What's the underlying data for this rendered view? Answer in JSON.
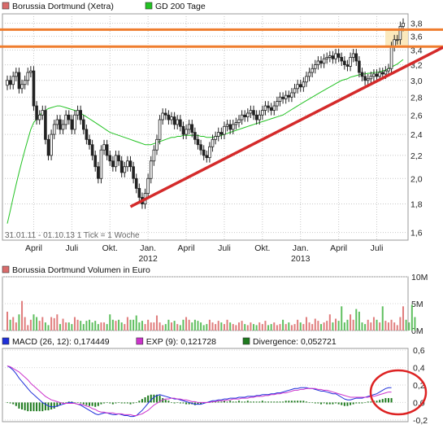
{
  "chart_data": [
    {
      "type": "candlestick",
      "legend": [
        {
          "label": "Borussia Dortmund (Xetra)",
          "color": "#d96b6b"
        },
        {
          "label": "GD 200 Tage",
          "color": "#22c222"
        }
      ],
      "ylim": [
        1.55,
        3.95
      ],
      "log_scale": true,
      "y_ticks": [
        "1,6",
        "1,8",
        "2,0",
        "2,2",
        "2,4",
        "2,6",
        "2,8",
        "3,0",
        "3,2",
        "3,4",
        "3,6",
        "3,8"
      ],
      "y_tick_values": [
        1.6,
        1.8,
        2.0,
        2.2,
        2.4,
        2.6,
        2.8,
        3.0,
        3.2,
        3.4,
        3.6,
        3.8
      ],
      "x_ticks": [
        "April",
        "Juli",
        "Okt.",
        "Jan.",
        "April",
        "Juli",
        "Okt.",
        "Jan.",
        "April",
        "Juli"
      ],
      "x_tick_years": [
        "",
        "",
        "",
        "2012",
        "",
        "",
        "",
        "2013",
        "",
        ""
      ],
      "x_tick_weeks": [
        9,
        22,
        35,
        48,
        61,
        74,
        87,
        100,
        113,
        126
      ],
      "info_text": "31.01.11 - 01.10.13  1 Tick = 1 Woche",
      "close": [
        3.0,
        2.95,
        3.05,
        3.1,
        2.9,
        2.95,
        3.0,
        3.1,
        3.12,
        2.7,
        2.55,
        2.6,
        2.65,
        2.35,
        2.2,
        2.4,
        2.5,
        2.55,
        2.45,
        2.5,
        2.6,
        2.55,
        2.45,
        2.6,
        2.65,
        2.55,
        2.45,
        2.35,
        2.3,
        2.2,
        2.1,
        2.0,
        2.25,
        2.3,
        2.2,
        2.15,
        2.1,
        2.2,
        2.15,
        2.05,
        2.1,
        2.15,
        2.1,
        2.0,
        1.92,
        1.85,
        1.8,
        1.88,
        2.0,
        2.15,
        2.25,
        2.35,
        2.55,
        2.62,
        2.6,
        2.55,
        2.58,
        2.5,
        2.55,
        2.48,
        2.4,
        2.45,
        2.5,
        2.42,
        2.35,
        2.3,
        2.25,
        2.2,
        2.18,
        2.28,
        2.35,
        2.38,
        2.42,
        2.4,
        2.48,
        2.5,
        2.45,
        2.5,
        2.52,
        2.55,
        2.6,
        2.58,
        2.62,
        2.65,
        2.6,
        2.55,
        2.6,
        2.65,
        2.7,
        2.68,
        2.65,
        2.7,
        2.75,
        2.8,
        2.78,
        2.82,
        2.8,
        2.85,
        2.9,
        2.95,
        2.92,
        2.98,
        3.05,
        3.1,
        3.15,
        3.2,
        3.25,
        3.22,
        3.28,
        3.3,
        3.32,
        3.28,
        3.35,
        3.3,
        3.25,
        3.2,
        3.18,
        3.3,
        3.35,
        3.25,
        3.1,
        3.05,
        3.0,
        3.02,
        3.05,
        3.08,
        3.05,
        3.1,
        3.08,
        3.12,
        3.15,
        3.45,
        3.55,
        3.55,
        3.75,
        3.8
      ],
      "gd200": [
        1.66,
        1.75,
        1.85,
        1.95,
        2.05,
        2.15,
        2.25,
        2.35,
        2.45,
        2.52,
        2.56,
        2.6,
        2.63,
        2.65,
        2.67,
        2.68,
        2.69,
        2.7,
        2.7,
        2.69,
        2.68,
        2.67,
        2.66,
        2.65,
        2.64,
        2.62,
        2.6,
        2.58,
        2.56,
        2.54,
        2.52,
        2.5,
        2.48,
        2.46,
        2.44,
        2.42,
        2.41,
        2.4,
        2.39,
        2.38,
        2.37,
        2.36,
        2.35,
        2.34,
        2.33,
        2.32,
        2.31,
        2.3,
        2.3,
        2.3,
        2.31,
        2.32,
        2.33,
        2.34,
        2.35,
        2.36,
        2.37,
        2.37,
        2.38,
        2.38,
        2.39,
        2.39,
        2.39,
        2.39,
        2.39,
        2.39,
        2.38,
        2.38,
        2.37,
        2.37,
        2.37,
        2.38,
        2.38,
        2.39,
        2.4,
        2.41,
        2.42,
        2.43,
        2.44,
        2.45,
        2.46,
        2.47,
        2.48,
        2.49,
        2.5,
        2.51,
        2.52,
        2.53,
        2.54,
        2.55,
        2.56,
        2.57,
        2.58,
        2.59,
        2.6,
        2.62,
        2.64,
        2.66,
        2.68,
        2.7,
        2.72,
        2.74,
        2.76,
        2.78,
        2.8,
        2.82,
        2.84,
        2.86,
        2.88,
        2.9,
        2.92,
        2.94,
        2.96,
        2.98,
        3.0,
        3.01,
        3.02,
        3.04,
        3.05,
        3.06,
        3.07,
        3.08,
        3.08,
        3.09,
        3.09,
        3.1,
        3.1,
        3.11,
        3.12,
        3.13,
        3.15,
        3.17,
        3.19,
        3.21,
        3.24,
        3.27
      ],
      "annotations": {
        "horizontal_lines": [
          3.7,
          3.45
        ],
        "highlight_band": [
          3.45,
          3.7
        ],
        "trendline": {
          "from": {
            "week": 42,
            "value": 1.78
          },
          "to": {
            "week": 140,
            "value": 3.45
          }
        }
      }
    },
    {
      "type": "bar",
      "legend": [
        {
          "label": "Borussia Dortmund Volumen in Euro",
          "color": "#d96b6b"
        }
      ],
      "y_ticks": [
        "0M",
        "5M",
        "10M"
      ],
      "y_tick_values": [
        0,
        5,
        10
      ],
      "ylim": [
        0,
        10
      ],
      "values": [
        3.5,
        2,
        2.5,
        1.5,
        3,
        5.5,
        2.5,
        1,
        2,
        3,
        2.5,
        1.8,
        2.5,
        1.5,
        1,
        2.5,
        2.3,
        3,
        1.2,
        2.2,
        1.5,
        1.5,
        1.2,
        2.5,
        2,
        1.8,
        1.2,
        1.8,
        2,
        1.5,
        1.8,
        1.2,
        1.5,
        1.5,
        1.2,
        3,
        2,
        1.8,
        2,
        1.5,
        1.2,
        2.5,
        2,
        2,
        2.8,
        1.5,
        1.8,
        1.2,
        2,
        1.5,
        1.5,
        2.8,
        1.5,
        1,
        1.2,
        2,
        1.5,
        1.8,
        1.2,
        1,
        2,
        2.5,
        2,
        1.5,
        2,
        1.8,
        1.5,
        1,
        1.2,
        2,
        1.5,
        1.2,
        1.8,
        1.5,
        1.2,
        2,
        1.5,
        1.2,
        1,
        1.5,
        1.8,
        1.2,
        1,
        1.5,
        1.2,
        1,
        1.5,
        1.2,
        1.8,
        1,
        1.2,
        1.5,
        1,
        1.2,
        2,
        1.2,
        1.5,
        1,
        1.2,
        2,
        1.5,
        1.2,
        2.5,
        1.5,
        1.2,
        2.2,
        1.8,
        1.2,
        1.5,
        1.8,
        3,
        1.5,
        2.2,
        1.8,
        4.5,
        1.5,
        2,
        3,
        2,
        4,
        3.5,
        1.5,
        1.2,
        2,
        1.5,
        2.5,
        2,
        1.5,
        4.5,
        1.8,
        1.5,
        2,
        1.5,
        1,
        2.5,
        4.5,
        2,
        1.5,
        4.8,
        2.5
      ],
      "colors_pattern": "red = up week, green = down week"
    },
    {
      "type": "line",
      "legend": [
        {
          "label": "MACD (26, 12): 0,174449",
          "color": "#1f2fd9"
        },
        {
          "label": "EXP (9): 0,121728",
          "color": "#cc33cc"
        },
        {
          "label": "Divergence: 0,052721",
          "color": "#1e7a1e"
        }
      ],
      "y_ticks": [
        "-0,2",
        "0,0",
        "0,2",
        "0,4",
        "0,6"
      ],
      "y_tick_values": [
        -0.2,
        0.0,
        0.2,
        0.4,
        0.6
      ],
      "ylim": [
        -0.22,
        0.62
      ],
      "series": [
        {
          "name": "MACD (26, 12): 0,174449",
          "values": [
            0.42,
            0.4,
            0.37,
            0.33,
            0.28,
            0.24,
            0.2,
            0.16,
            0.12,
            0.09,
            0.06,
            0.03,
            0.0,
            -0.02,
            -0.04,
            -0.05,
            -0.05,
            -0.04,
            -0.03,
            -0.02,
            -0.01,
            0.0,
            0.0,
            -0.01,
            -0.02,
            -0.03,
            -0.05,
            -0.07,
            -0.09,
            -0.11,
            -0.13,
            -0.14,
            -0.13,
            -0.12,
            -0.12,
            -0.13,
            -0.14,
            -0.14,
            -0.13,
            -0.14,
            -0.15,
            -0.15,
            -0.16,
            -0.16,
            -0.15,
            -0.12,
            -0.09,
            -0.05,
            -0.01,
            0.03,
            0.06,
            0.08,
            0.09,
            0.08,
            0.07,
            0.06,
            0.05,
            0.04,
            0.04,
            0.03,
            0.02,
            0.01,
            0.0,
            -0.01,
            -0.02,
            -0.02,
            -0.02,
            -0.01,
            0.0,
            0.01,
            0.02,
            0.02,
            0.03,
            0.03,
            0.04,
            0.04,
            0.05,
            0.05,
            0.05,
            0.06,
            0.06,
            0.06,
            0.07,
            0.07,
            0.07,
            0.08,
            0.08,
            0.09,
            0.09,
            0.09,
            0.1,
            0.1,
            0.11,
            0.11,
            0.12,
            0.13,
            0.14,
            0.15,
            0.16,
            0.16,
            0.17,
            0.17,
            0.17,
            0.16,
            0.16,
            0.15,
            0.14,
            0.13,
            0.13,
            0.12,
            0.11,
            0.1,
            0.1,
            0.08,
            0.06,
            0.04,
            0.03,
            0.03,
            0.04,
            0.05,
            0.05,
            0.05,
            0.06,
            0.07,
            0.08,
            0.09,
            0.1,
            0.12,
            0.14,
            0.16,
            0.17,
            0.17
          ]
        },
        {
          "name": "EXP (9): 0,121728",
          "values": [
            0.42,
            0.41,
            0.39,
            0.37,
            0.35,
            0.32,
            0.29,
            0.26,
            0.22,
            0.19,
            0.16,
            0.13,
            0.1,
            0.07,
            0.05,
            0.03,
            0.02,
            0.01,
            0.0,
            -0.01,
            -0.01,
            -0.01,
            -0.01,
            -0.01,
            -0.02,
            -0.02,
            -0.03,
            -0.04,
            -0.05,
            -0.07,
            -0.08,
            -0.1,
            -0.11,
            -0.11,
            -0.12,
            -0.12,
            -0.12,
            -0.13,
            -0.13,
            -0.13,
            -0.14,
            -0.14,
            -0.14,
            -0.15,
            -0.15,
            -0.14,
            -0.13,
            -0.11,
            -0.09,
            -0.06,
            -0.03,
            -0.01,
            0.01,
            0.03,
            0.04,
            0.04,
            0.05,
            0.05,
            0.04,
            0.04,
            0.03,
            0.03,
            0.02,
            0.01,
            0.01,
            0.0,
            0.0,
            0.0,
            0.0,
            0.0,
            0.01,
            0.01,
            0.02,
            0.02,
            0.02,
            0.03,
            0.03,
            0.04,
            0.04,
            0.04,
            0.05,
            0.05,
            0.05,
            0.06,
            0.06,
            0.07,
            0.07,
            0.07,
            0.08,
            0.08,
            0.09,
            0.09,
            0.1,
            0.1,
            0.11,
            0.11,
            0.12,
            0.13,
            0.14,
            0.14,
            0.15,
            0.15,
            0.16,
            0.16,
            0.16,
            0.16,
            0.15,
            0.15,
            0.14,
            0.14,
            0.13,
            0.12,
            0.11,
            0.1,
            0.09,
            0.08,
            0.07,
            0.06,
            0.06,
            0.06,
            0.06,
            0.06,
            0.06,
            0.06,
            0.07,
            0.07,
            0.08,
            0.09,
            0.1,
            0.11,
            0.12,
            0.12
          ]
        }
      ],
      "divergence": [
        0.0,
        -0.01,
        -0.02,
        -0.04,
        -0.07,
        -0.08,
        -0.09,
        -0.1,
        -0.1,
        -0.1,
        -0.1,
        -0.1,
        -0.1,
        -0.09,
        -0.09,
        -0.08,
        -0.07,
        -0.05,
        -0.03,
        -0.01,
        0.0,
        0.01,
        0.01,
        0.0,
        0.0,
        -0.01,
        -0.02,
        -0.03,
        -0.04,
        -0.04,
        -0.05,
        -0.04,
        -0.02,
        -0.01,
        0.0,
        -0.01,
        -0.02,
        -0.01,
        0.0,
        -0.01,
        -0.01,
        -0.01,
        -0.02,
        -0.01,
        0.0,
        0.02,
        0.04,
        0.06,
        0.08,
        0.09,
        0.09,
        0.09,
        0.08,
        0.05,
        0.03,
        0.02,
        0.0,
        -0.01,
        0.0,
        -0.01,
        -0.01,
        -0.02,
        -0.02,
        -0.02,
        -0.03,
        -0.02,
        -0.02,
        -0.01,
        0.0,
        0.01,
        0.01,
        0.01,
        0.01,
        0.01,
        0.02,
        0.01,
        0.02,
        0.01,
        0.01,
        0.02,
        0.01,
        0.01,
        0.02,
        0.01,
        0.01,
        0.01,
        0.01,
        0.02,
        0.01,
        0.01,
        0.01,
        0.01,
        0.01,
        0.01,
        0.01,
        0.02,
        0.02,
        0.02,
        0.02,
        0.02,
        0.02,
        0.02,
        0.01,
        0.0,
        0.0,
        -0.01,
        -0.01,
        -0.02,
        -0.01,
        -0.02,
        -0.02,
        -0.02,
        -0.01,
        -0.02,
        -0.03,
        -0.04,
        -0.04,
        -0.03,
        -0.02,
        -0.01,
        -0.01,
        -0.01,
        0.0,
        0.01,
        0.01,
        0.02,
        0.02,
        0.03,
        0.04,
        0.05,
        0.05,
        0.05
      ],
      "annotations": {
        "circle_around_last_weeks": true
      }
    }
  ]
}
